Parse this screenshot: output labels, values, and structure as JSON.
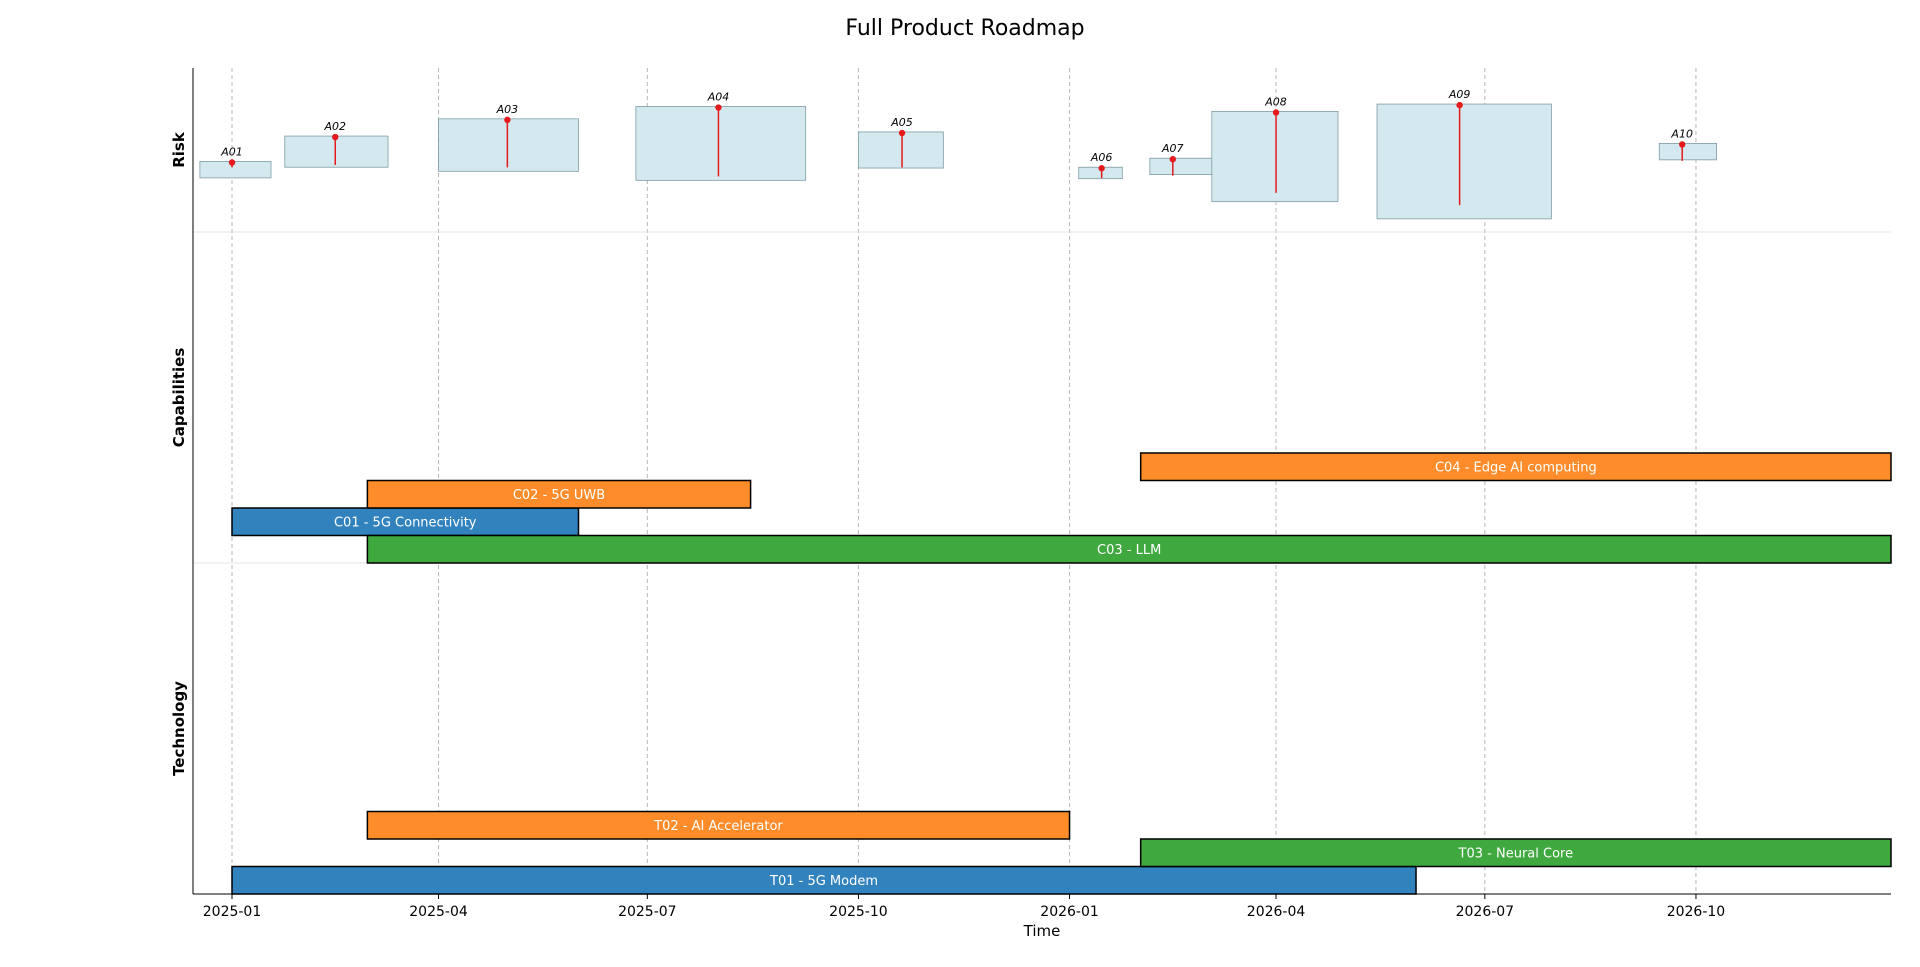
{
  "chart_data": {
    "type": "gantt",
    "title": "Full Product Roadmap",
    "xlabel": "Time",
    "xlim": [
      "2024-12-15",
      "2026-12-25"
    ],
    "xticks": [
      "2025-01",
      "2025-04",
      "2025-07",
      "2025-10",
      "2026-01",
      "2026-04",
      "2026-07",
      "2026-10"
    ],
    "grid": "vertical dashed at ticks",
    "lanes": [
      "Risk",
      "Capabilities",
      "Technology"
    ],
    "colors": {
      "blue": "#3182bd",
      "orange": "#ff8c2a",
      "green": "#3fa93f",
      "risk_box": "#d4e9ef",
      "risk_stem": "#e41a1c"
    },
    "capabilities": [
      {
        "label": "C01 - 5G Connectivity",
        "start": "2025-01-01",
        "end": "2025-06-01",
        "row": 1,
        "color": "#3182bd"
      },
      {
        "label": "C02 - 5G UWB",
        "start": "2025-03-01",
        "end": "2025-08-15",
        "row": 2,
        "color": "#ff8c2a"
      },
      {
        "label": "C03 - LLM",
        "start": "2025-03-01",
        "end": "2026-12-25",
        "row": 0,
        "color": "#3fa93f"
      },
      {
        "label": "C04 - Edge AI computing",
        "start": "2026-02-01",
        "end": "2026-12-25",
        "row": 3,
        "color": "#ff8c2a"
      }
    ],
    "technology": [
      {
        "label": "T01 - 5G Modem",
        "start": "2025-01-01",
        "end": "2026-06-01",
        "row": 0,
        "color": "#3182bd"
      },
      {
        "label": "T02 - AI Accelerator",
        "start": "2025-03-01",
        "end": "2026-01-01",
        "row": 2,
        "color": "#ff8c2a"
      },
      {
        "label": "T03 - Neural Core",
        "start": "2026-02-01",
        "end": "2026-12-25",
        "row": 1,
        "color": "#3fa93f"
      }
    ],
    "risks": [
      {
        "label": "A01",
        "date": "2025-01-01",
        "start": "2024-12-18",
        "end": "2025-01-18",
        "center": 0.62,
        "height": 0.1,
        "stem": 0.03
      },
      {
        "label": "A02",
        "date": "2025-02-15",
        "start": "2025-01-24",
        "end": "2025-03-10",
        "center": 0.51,
        "height": 0.19,
        "stem": 0.17
      },
      {
        "label": "A03",
        "date": "2025-05-01",
        "start": "2025-04-01",
        "end": "2025-06-01",
        "center": 0.47,
        "height": 0.32,
        "stem": 0.29
      },
      {
        "label": "A04",
        "date": "2025-08-01",
        "start": "2025-06-26",
        "end": "2025-09-08",
        "center": 0.46,
        "height": 0.45,
        "stem": 0.42
      },
      {
        "label": "A05",
        "date": "2025-10-20",
        "start": "2025-10-01",
        "end": "2025-11-07",
        "center": 0.5,
        "height": 0.22,
        "stem": 0.21
      },
      {
        "label": "A06",
        "date": "2026-01-15",
        "start": "2026-01-05",
        "end": "2026-01-24",
        "center": 0.64,
        "height": 0.07,
        "stem": 0.06
      },
      {
        "label": "A07",
        "date": "2026-02-15",
        "start": "2026-02-05",
        "end": "2026-03-07",
        "center": 0.6,
        "height": 0.1,
        "stem": 0.1
      },
      {
        "label": "A08",
        "date": "2026-04-01",
        "start": "2026-03-04",
        "end": "2026-04-28",
        "center": 0.54,
        "height": 0.55,
        "stem": 0.49
      },
      {
        "label": "A09",
        "date": "2026-06-20",
        "start": "2026-05-15",
        "end": "2026-07-30",
        "center": 0.57,
        "height": 0.7,
        "stem": 0.61
      },
      {
        "label": "A10",
        "date": "2026-09-25",
        "start": "2026-09-15",
        "end": "2026-10-10",
        "center": 0.51,
        "height": 0.1,
        "stem": 0.1
      }
    ]
  }
}
